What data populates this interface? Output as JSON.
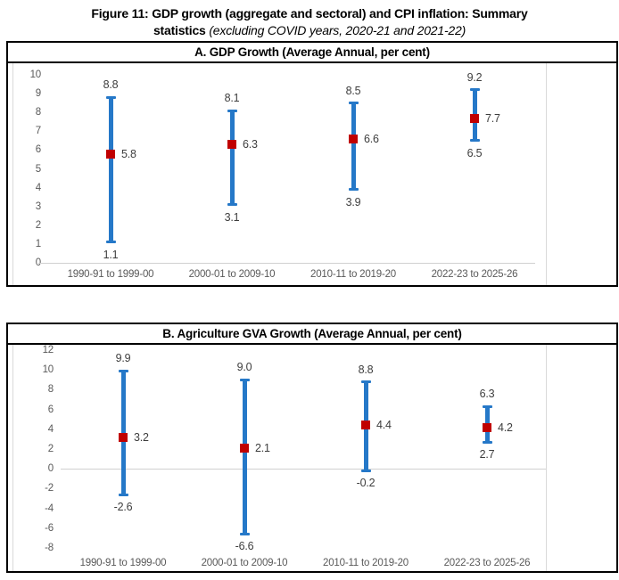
{
  "title": {
    "line1": "Figure 11: GDP growth (aggregate and sectoral) and CPI inflation: Summary",
    "line2_bold": "statistics",
    "line2_italic": "(excluding COVID years, 2020-21 and 2021-22)"
  },
  "colors": {
    "range_line_blue": "#2578C8",
    "marker_red": "#C00000",
    "axis_text_gray": "#595959",
    "data_label_dark": "#3D3D3D",
    "baseline_gray": "#D0D0D0",
    "panel_border_black": "#000000"
  },
  "chart_data": [
    {
      "type": "range-high-low-close",
      "title": "A. GDP Growth (Average Annual, per cent)",
      "categories": [
        "1990-91 to 1999-00",
        "2000-01 to 2009-10",
        "2010-11 to 2019-20",
        "2022-23 to 2025-26"
      ],
      "series": [
        {
          "category": "1990-91 to 1999-00",
          "high": 8.8,
          "low": 1.1,
          "mean": 5.8
        },
        {
          "category": "2000-01 to 2009-10",
          "high": 8.1,
          "low": 3.1,
          "mean": 6.3
        },
        {
          "category": "2010-11 to 2019-20",
          "high": 8.5,
          "low": 3.9,
          "mean": 6.6
        },
        {
          "category": "2022-23 to 2025-26",
          "high": 9.2,
          "low": 6.5,
          "mean": 7.7
        }
      ],
      "ylim": [
        0,
        10
      ],
      "ytick_step": 1,
      "grid": "off",
      "legend": "none"
    },
    {
      "type": "range-high-low-close",
      "title": "B. Agriculture GVA Growth (Average Annual, per cent)",
      "categories": [
        "1990-91 to 1999-00",
        "2000-01 to 2009-10",
        "2010-11 to 2019-20",
        "2022-23 to 2025-26"
      ],
      "series": [
        {
          "category": "1990-91 to 1999-00",
          "high": 9.9,
          "low": -2.6,
          "mean": 3.2
        },
        {
          "category": "2000-01 to 2009-10",
          "high": 9.0,
          "low": -6.6,
          "mean": 2.1
        },
        {
          "category": "2010-11 to 2019-20",
          "high": 8.8,
          "low": -0.2,
          "mean": 4.4
        },
        {
          "category": "2022-23 to 2025-26",
          "high": 6.3,
          "low": 2.7,
          "mean": 4.2
        }
      ],
      "ylim": [
        -8,
        12
      ],
      "ytick_step": 2,
      "grid": "off",
      "legend": "none"
    }
  ]
}
